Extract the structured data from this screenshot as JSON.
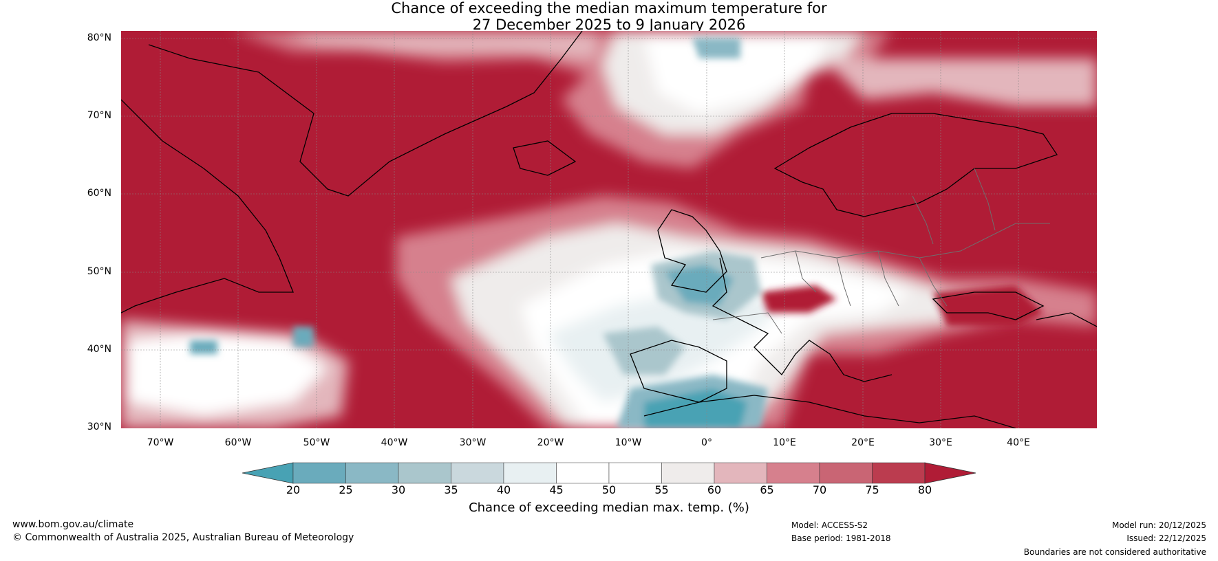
{
  "title": {
    "line1": "Chance of exceeding the median maximum temperature for",
    "line2": "27 December 2025 to 9 January 2026"
  },
  "map": {
    "lat_labels": [
      "80°N",
      "70°N",
      "60°N",
      "50°N",
      "40°N",
      "30°N"
    ],
    "lon_labels": [
      "70°W",
      "60°W",
      "50°W",
      "40°W",
      "30°W",
      "20°W",
      "10°W",
      "0°",
      "10°E",
      "20°E",
      "30°E",
      "40°E"
    ],
    "lat_range": [
      30,
      81
    ],
    "lon_range": [
      -75,
      50
    ]
  },
  "colorbar": {
    "ticks": [
      "20",
      "25",
      "30",
      "35",
      "40",
      "45",
      "50",
      "55",
      "60",
      "65",
      "70",
      "75",
      "80"
    ],
    "colors": [
      "#48a2b4",
      "#6aabbc",
      "#8ab8c5",
      "#aac6cc",
      "#cad8dd",
      "#e8f0f2",
      "#ffffff",
      "#ffffff",
      "#efeceb",
      "#e3b6bc",
      "#d6808d",
      "#c96574",
      "#bb3c4f",
      "#b01c36"
    ],
    "label": "Chance of exceeding median max. temp. (%)"
  },
  "footer": {
    "website": "www.bom.gov.au/climate",
    "copyright": "© Commonwealth of Australia 2025, Australian Bureau of Meteorology",
    "model": "Model: ACCESS-S2",
    "base_period": "Base period: 1981-2018",
    "model_run": "Model run: 20/12/2025",
    "issued": "Issued: 22/12/2025",
    "disclaimer": "Boundaries are not considered authoritative"
  }
}
